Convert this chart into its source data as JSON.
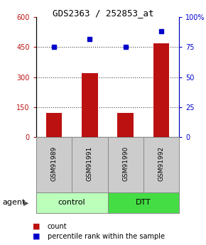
{
  "title": "GDS2363 / 252853_at",
  "samples": [
    "GSM91989",
    "GSM91991",
    "GSM91990",
    "GSM91992"
  ],
  "bar_values": [
    120,
    320,
    120,
    470
  ],
  "percentile_values": [
    75,
    82,
    75,
    88
  ],
  "bar_color": "#bb1111",
  "dot_color": "#0000cc",
  "left_ylim": [
    0,
    600
  ],
  "right_ylim": [
    0,
    100
  ],
  "left_yticks": [
    0,
    150,
    300,
    450,
    600
  ],
  "right_yticks": [
    0,
    25,
    50,
    75,
    100
  ],
  "left_yticklabels": [
    "0",
    "150",
    "300",
    "450",
    "600"
  ],
  "right_yticklabels": [
    "0",
    "25",
    "50",
    "75",
    "100%"
  ],
  "groups": [
    {
      "label": "control",
      "indices": [
        0,
        1
      ],
      "color": "#bbffbb"
    },
    {
      "label": "DTT",
      "indices": [
        2,
        3
      ],
      "color": "#44dd44"
    }
  ],
  "group_row_label": "agent",
  "legend_items": [
    {
      "label": "count",
      "color": "#bb1111"
    },
    {
      "label": "percentile rank within the sample",
      "color": "#0000cc"
    }
  ],
  "dotted_line_color": "#444444",
  "grid_lines": [
    150,
    300,
    450
  ],
  "bar_width": 0.45,
  "sample_box_color": "#cccccc",
  "plot_bg_color": "#ffffff"
}
